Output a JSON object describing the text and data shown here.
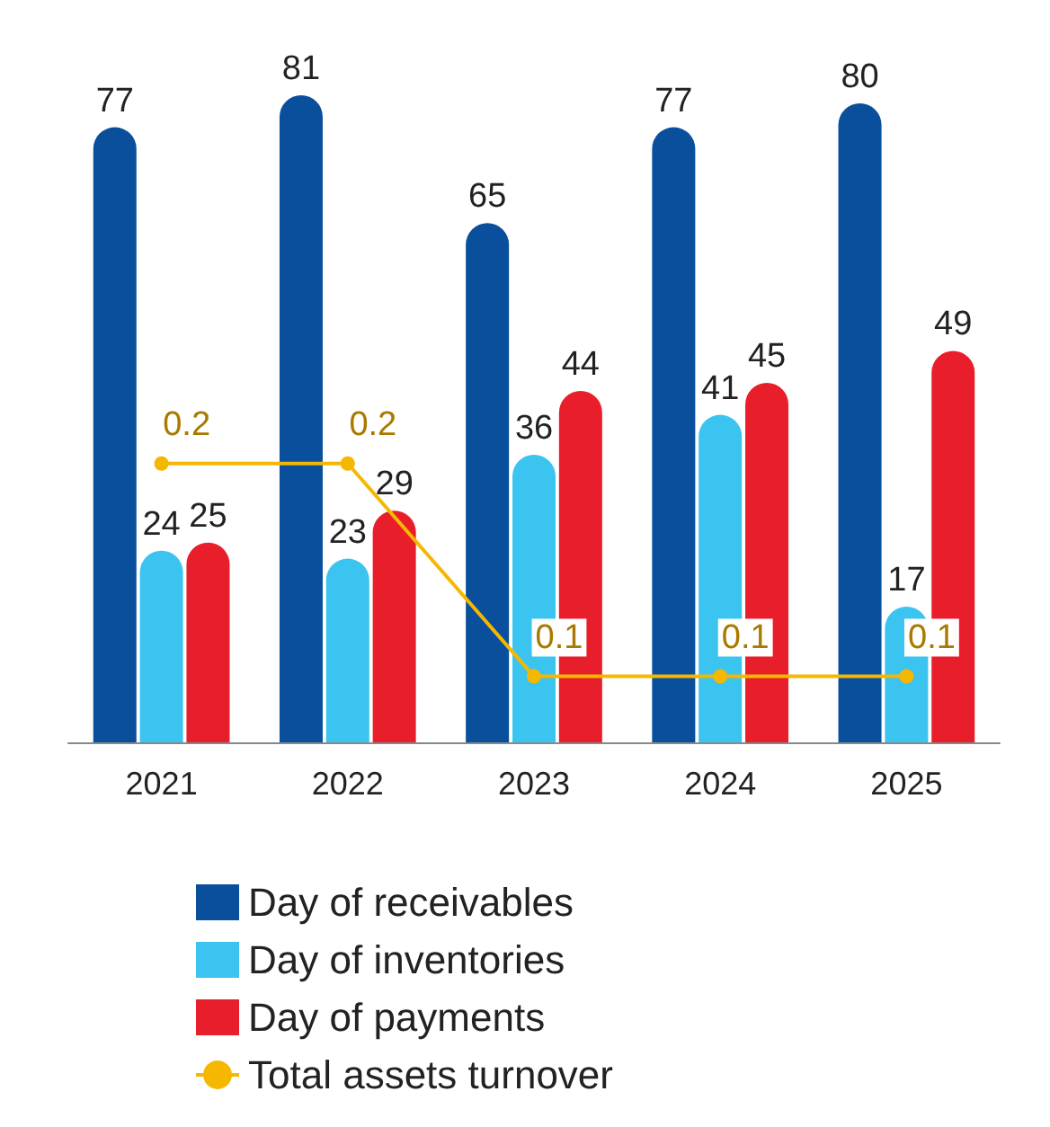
{
  "chart_data": {
    "type": "bar",
    "categories": [
      "2021",
      "2022",
      "2023",
      "2024",
      "2025"
    ],
    "series": [
      {
        "name": "Day of receivables",
        "color": "#0a4f9c",
        "values": [
          77,
          81,
          65,
          77,
          80
        ]
      },
      {
        "name": "Day of inventories",
        "color": "#3cc4f0",
        "values": [
          24,
          23,
          36,
          41,
          17
        ]
      },
      {
        "name": "Day of payments",
        "color": "#e81f2b",
        "values": [
          25,
          29,
          44,
          45,
          49
        ]
      },
      {
        "name": "Total assets turnover",
        "color": "#f5b700",
        "type": "line",
        "axis": "y2",
        "marker": "circle",
        "values": [
          0.2,
          0.2,
          0.1,
          0.1,
          0.1
        ]
      }
    ],
    "data_labels": true,
    "tick_labels": "x",
    "legend": "bottom"
  }
}
